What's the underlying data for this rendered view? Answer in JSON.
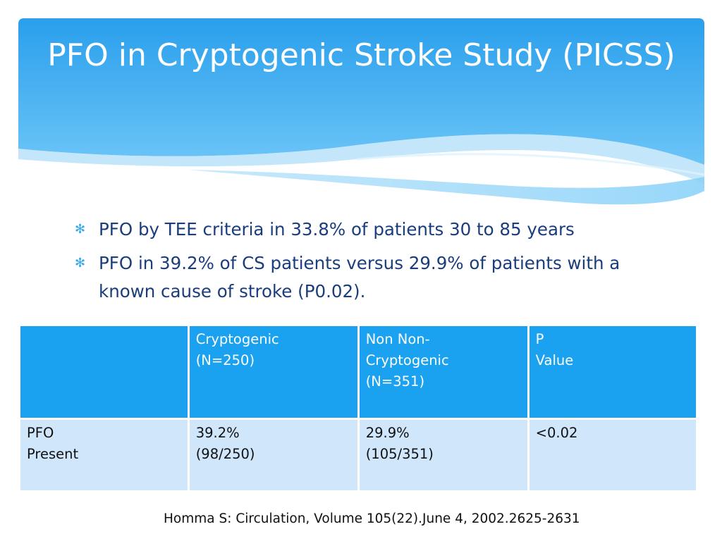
{
  "slide": {
    "title": "PFO in Cryptogenic Stroke Study (PICSS)",
    "bullet_symbol": "✻",
    "bullets": [
      "PFO by TEE criteria in 33.8% of patients 30 to 85 years",
      "PFO in 39.2% of CS patients versus 29.9% of patients with a known cause of stroke (P0.02)."
    ],
    "table": {
      "headers": [
        "",
        "Cryptogenic\n(N=250)",
        "Non Non-\nCryptogenic\n(N=351)",
        "P\nValue"
      ],
      "rows": [
        [
          "PFO\nPresent",
          "39.2%\n(98/250)",
          "29.9%\n(105/351)",
          "<0.02"
        ]
      ]
    },
    "citation": "Homma S: Circulation, Volume 105(22).June 4, 2002.2625-2631",
    "colors": {
      "header_blue": "#2fa6f0",
      "bullet_text": "#1a3d7c",
      "table_header": "#1aa2f0",
      "table_row": "#cfe6fb"
    }
  }
}
